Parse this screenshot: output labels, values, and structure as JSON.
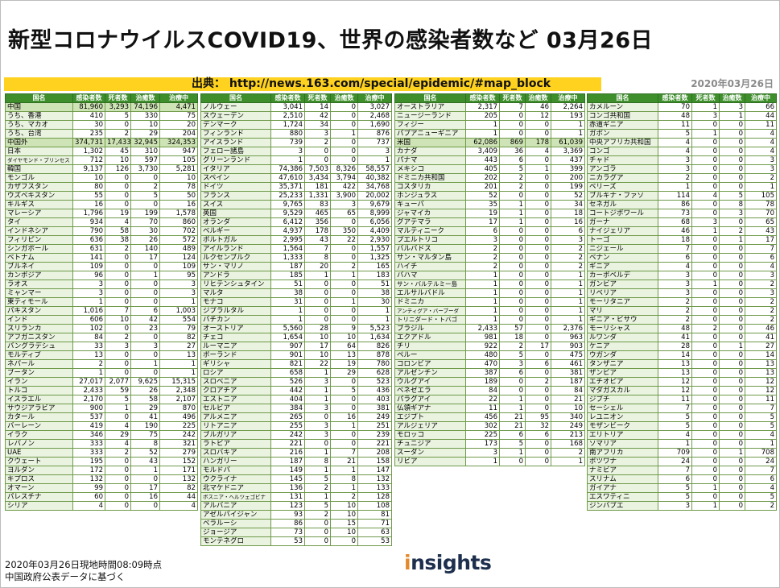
{
  "title": "新型コロナウイルスCOVID19、世界の感染者数など 03月26日",
  "source": "出典： http://news.163.com/special/epidemic/#map_block",
  "date": "2020年03月26日",
  "footer_line1": "2020年03月26日現地時間08:09時点",
  "footer_line2": "中国政府公表データに基づく",
  "logo": {
    "text": "insights",
    "dot": "i"
  },
  "headers": [
    "国名",
    "感染者数",
    "死者数",
    "治癒数",
    "治療中"
  ],
  "tables": [
    {
      "rows": [
        [
          "中国",
          "81,960",
          "3,293",
          "74,196",
          "4,471"
        ],
        [
          "うち、香港",
          "410",
          "5",
          "330",
          "75"
        ],
        [
          "うち、マカオ",
          "30",
          "0",
          "10",
          "20"
        ],
        [
          "うち、台湾",
          "235",
          "2",
          "29",
          "204"
        ],
        [
          "中国外",
          "374,731",
          "17,433",
          "32,945",
          "324,353"
        ],
        [
          "日本",
          "1,302",
          "45",
          "310",
          "947"
        ],
        [
          "ダイヤモンド・プリンセス",
          "712",
          "10",
          "597",
          "105"
        ],
        [
          "韓国",
          "9,137",
          "126",
          "3,730",
          "5,281"
        ],
        [
          "モンゴル",
          "10",
          "0",
          "0",
          "10"
        ],
        [
          "カザフスタン",
          "80",
          "0",
          "2",
          "78"
        ],
        [
          "ウズベキスタン",
          "55",
          "0",
          "5",
          "50"
        ],
        [
          "キルギス",
          "16",
          "0",
          "0",
          "16"
        ],
        [
          "マレーシア",
          "1,796",
          "19",
          "199",
          "1,578"
        ],
        [
          "タイ",
          "934",
          "4",
          "70",
          "860"
        ],
        [
          "インドネシア",
          "790",
          "58",
          "30",
          "702"
        ],
        [
          "フィリピン",
          "636",
          "38",
          "26",
          "572"
        ],
        [
          "シンガポール",
          "631",
          "2",
          "140",
          "489"
        ],
        [
          "ベトナム",
          "141",
          "0",
          "17",
          "124"
        ],
        [
          "ブルネイ",
          "109",
          "0",
          "0",
          "109"
        ],
        [
          "カンボジア",
          "96",
          "0",
          "1",
          "95"
        ],
        [
          "ラオス",
          "3",
          "0",
          "0",
          "3"
        ],
        [
          "ミャンマー",
          "3",
          "0",
          "0",
          "3"
        ],
        [
          "東ティモール",
          "1",
          "0",
          "0",
          "1"
        ],
        [
          "パキスタン",
          "1,016",
          "7",
          "6",
          "1,003"
        ],
        [
          "インド",
          "606",
          "10",
          "42",
          "554"
        ],
        [
          "スリランカ",
          "102",
          "0",
          "23",
          "79"
        ],
        [
          "アフガニスタン",
          "84",
          "2",
          "0",
          "82"
        ],
        [
          "バングラデシュ",
          "33",
          "3",
          "3",
          "27"
        ],
        [
          "モルディブ",
          "13",
          "0",
          "0",
          "13"
        ],
        [
          "ネパール",
          "2",
          "0",
          "1",
          "1"
        ],
        [
          "ブータン",
          "1",
          "0",
          "0",
          "1"
        ],
        [
          "イラン",
          "27,017",
          "2,077",
          "9,625",
          "15,315"
        ],
        [
          "トルコ",
          "2,433",
          "59",
          "26",
          "2,348"
        ],
        [
          "イスラエル",
          "2,170",
          "5",
          "58",
          "2,107"
        ],
        [
          "サウジアラビア",
          "900",
          "1",
          "29",
          "870"
        ],
        [
          "カタール",
          "537",
          "0",
          "41",
          "496"
        ],
        [
          "バーレーン",
          "419",
          "4",
          "190",
          "225"
        ],
        [
          "イラク",
          "346",
          "29",
          "75",
          "242"
        ],
        [
          "レバノン",
          "333",
          "4",
          "8",
          "321"
        ],
        [
          "UAE",
          "333",
          "2",
          "52",
          "279"
        ],
        [
          "クウェート",
          "195",
          "0",
          "43",
          "152"
        ],
        [
          "ヨルダン",
          "172",
          "0",
          "1",
          "171"
        ],
        [
          "キプロス",
          "132",
          "0",
          "0",
          "132"
        ],
        [
          "オマーン",
          "99",
          "0",
          "17",
          "82"
        ],
        [
          "パレスチナ",
          "60",
          "0",
          "16",
          "44"
        ],
        [
          "シリア",
          "4",
          "0",
          "0",
          "4"
        ]
      ]
    },
    {
      "rows": [
        [
          "ノルウェー",
          "3,041",
          "14",
          "0",
          "3,027"
        ],
        [
          "スウェーデン",
          "2,510",
          "42",
          "0",
          "2,468"
        ],
        [
          "デンマーク",
          "1,724",
          "34",
          "0",
          "1,690"
        ],
        [
          "フィンランド",
          "880",
          "3",
          "1",
          "876"
        ],
        [
          "アイスランド",
          "739",
          "2",
          "0",
          "737"
        ],
        [
          "フェロー諸島",
          "3",
          "0",
          "0",
          "3"
        ],
        [
          "グリーンランド",
          "1",
          "0",
          "0",
          "1"
        ],
        [
          "イタリア",
          "74,386",
          "7,503",
          "8,326",
          "58,557"
        ],
        [
          "スペイン",
          "47,610",
          "3,434",
          "3,794",
          "40,382"
        ],
        [
          "ドイツ",
          "35,371",
          "181",
          "422",
          "34,768"
        ],
        [
          "フランス",
          "25,233",
          "1,331",
          "3,900",
          "20,002"
        ],
        [
          "スイス",
          "9,765",
          "83",
          "3",
          "9,679"
        ],
        [
          "英国",
          "9,529",
          "465",
          "65",
          "8,999"
        ],
        [
          "オランダ",
          "6,412",
          "356",
          "0",
          "6,056"
        ],
        [
          "ベルギー",
          "4,937",
          "178",
          "350",
          "4,409"
        ],
        [
          "ポルトガル",
          "2,995",
          "43",
          "22",
          "2,930"
        ],
        [
          "アイルランド",
          "1,564",
          "7",
          "0",
          "1,557"
        ],
        [
          "ルクセンブルク",
          "1,333",
          "8",
          "0",
          "1,325"
        ],
        [
          "サン・マリノ",
          "187",
          "20",
          "2",
          "165"
        ],
        [
          "アンドラ",
          "185",
          "1",
          "1",
          "183"
        ],
        [
          "リヒテンシュタイン",
          "51",
          "0",
          "0",
          "51"
        ],
        [
          "マルタ",
          "38",
          "0",
          "0",
          "38"
        ],
        [
          "モナコ",
          "31",
          "0",
          "1",
          "30"
        ],
        [
          "ジブラルタル",
          "1",
          "0",
          "0",
          "1"
        ],
        [
          "バチカン",
          "1",
          "0",
          "0",
          "1"
        ],
        [
          "オーストリア",
          "5,560",
          "28",
          "9",
          "5,523"
        ],
        [
          "チェコ",
          "1,654",
          "10",
          "10",
          "1,634"
        ],
        [
          "ルーマニア",
          "907",
          "17",
          "64",
          "826"
        ],
        [
          "ポーランド",
          "901",
          "10",
          "13",
          "878"
        ],
        [
          "ギリシャ",
          "821",
          "22",
          "19",
          "780"
        ],
        [
          "ロシア",
          "658",
          "1",
          "29",
          "628"
        ],
        [
          "スロベニア",
          "526",
          "3",
          "0",
          "523"
        ],
        [
          "クロアチア",
          "442",
          "1",
          "5",
          "436"
        ],
        [
          "エストニア",
          "404",
          "1",
          "0",
          "403"
        ],
        [
          "セルビア",
          "384",
          "3",
          "0",
          "381"
        ],
        [
          "アルメニア",
          "265",
          "0",
          "16",
          "249"
        ],
        [
          "リトアニア",
          "255",
          "3",
          "1",
          "251"
        ],
        [
          "ブルガリア",
          "242",
          "3",
          "0",
          "239"
        ],
        [
          "ラトビア",
          "221",
          "0",
          "0",
          "221"
        ],
        [
          "スロバキア",
          "216",
          "1",
          "7",
          "208"
        ],
        [
          "ハンガリー",
          "187",
          "8",
          "21",
          "158"
        ],
        [
          "モルドバ",
          "149",
          "1",
          "1",
          "147"
        ],
        [
          "ウクライナ",
          "145",
          "5",
          "8",
          "132"
        ],
        [
          "北マケドニア",
          "136",
          "2",
          "1",
          "133"
        ],
        [
          "ボスニア・ヘルツェゴビナ",
          "131",
          "1",
          "2",
          "128"
        ],
        [
          "アルバニア",
          "123",
          "5",
          "10",
          "108"
        ],
        [
          "アゼルバイジャン",
          "93",
          "2",
          "10",
          "81"
        ],
        [
          "ベラルーシ",
          "86",
          "0",
          "15",
          "71"
        ],
        [
          "ジョージア",
          "73",
          "0",
          "10",
          "63"
        ],
        [
          "モンテネグロ",
          "53",
          "0",
          "0",
          "53"
        ]
      ]
    },
    {
      "rows": [
        [
          "オーストラリア",
          "2,317",
          "7",
          "46",
          "2,264"
        ],
        [
          "ニュージーランド",
          "205",
          "0",
          "12",
          "193"
        ],
        [
          "フィジー",
          "1",
          "0",
          "0",
          "1"
        ],
        [
          "パプアニューギニア",
          "1",
          "0",
          "0",
          "1"
        ],
        [
          "米国",
          "62,086",
          "869",
          "178",
          "61,039"
        ],
        [
          "カナダ",
          "3,409",
          "36",
          "4",
          "3,369"
        ],
        [
          "パナマ",
          "443",
          "6",
          "0",
          "437"
        ],
        [
          "メキシコ",
          "405",
          "5",
          "1",
          "399"
        ],
        [
          "ドミニカ共和国",
          "202",
          "2",
          "0",
          "200"
        ],
        [
          "コスタリカ",
          "201",
          "2",
          "0",
          "199"
        ],
        [
          "ホンジュラス",
          "52",
          "0",
          "0",
          "52"
        ],
        [
          "キューバ",
          "35",
          "1",
          "0",
          "34"
        ],
        [
          "ジャマイカ",
          "19",
          "1",
          "0",
          "18"
        ],
        [
          "グアテマラ",
          "17",
          "1",
          "0",
          "16"
        ],
        [
          "マルティニーク",
          "6",
          "0",
          "0",
          "6"
        ],
        [
          "プエルトリコ",
          "3",
          "0",
          "0",
          "3"
        ],
        [
          "バルバドス",
          "2",
          "0",
          "0",
          "2"
        ],
        [
          "サン・マルタン島",
          "2",
          "0",
          "0",
          "2"
        ],
        [
          "ハイチ",
          "2",
          "0",
          "0",
          "2"
        ],
        [
          "バハマ",
          "1",
          "0",
          "0",
          "1"
        ],
        [
          "サン・バルテルミー島",
          "1",
          "0",
          "0",
          "1"
        ],
        [
          "エルサルバドル",
          "1",
          "0",
          "0",
          "1"
        ],
        [
          "ドミニカ",
          "1",
          "0",
          "0",
          "1"
        ],
        [
          "アンティグア・バーブーダ",
          "1",
          "0",
          "0",
          "1"
        ],
        [
          "トリニダード・トバゴ",
          "1",
          "0",
          "0",
          "1"
        ],
        [
          "ブラジル",
          "2,433",
          "57",
          "0",
          "2,376"
        ],
        [
          "エクアドル",
          "981",
          "18",
          "0",
          "963"
        ],
        [
          "チリ",
          "922",
          "2",
          "17",
          "903"
        ],
        [
          "ペルー",
          "480",
          "5",
          "0",
          "475"
        ],
        [
          "コロンビア",
          "470",
          "3",
          "6",
          "461"
        ],
        [
          "アルゼンチン",
          "387",
          "6",
          "0",
          "381"
        ],
        [
          "ウルグアイ",
          "189",
          "0",
          "2",
          "187"
        ],
        [
          "ベネゼエラ",
          "84",
          "0",
          "0",
          "84"
        ],
        [
          "パラグアイ",
          "22",
          "1",
          "0",
          "21"
        ],
        [
          "仏領ギアナ",
          "11",
          "1",
          "0",
          "10"
        ],
        [
          "エジプト",
          "456",
          "21",
          "95",
          "340"
        ],
        [
          "アルジェリア",
          "302",
          "21",
          "32",
          "249"
        ],
        [
          "モロッコ",
          "225",
          "6",
          "6",
          "213"
        ],
        [
          "チュニジア",
          "173",
          "5",
          "0",
          "168"
        ],
        [
          "スーダン",
          "3",
          "1",
          "0",
          "2"
        ],
        [
          "リビア",
          "1",
          "0",
          "0",
          "1"
        ]
      ]
    },
    {
      "rows": [
        [
          "カメルーン",
          "70",
          "1",
          "3",
          "66"
        ],
        [
          "コンゴ共和国",
          "48",
          "3",
          "1",
          "44"
        ],
        [
          "赤道ギニア",
          "11",
          "0",
          "0",
          "11"
        ],
        [
          "ガボン",
          "5",
          "1",
          "0",
          "4"
        ],
        [
          "中央アフリカ共和国",
          "4",
          "0",
          "0",
          "4"
        ],
        [
          "コンゴ",
          "4",
          "0",
          "0",
          "4"
        ],
        [
          "チャド",
          "3",
          "0",
          "0",
          "3"
        ],
        [
          "アンゴラ",
          "3",
          "0",
          "0",
          "3"
        ],
        [
          "ニカラグア",
          "2",
          "0",
          "0",
          "2"
        ],
        [
          "ベリーズ",
          "1",
          "0",
          "0",
          "1"
        ],
        [
          "ブルキナ・ファソ",
          "114",
          "4",
          "5",
          "105"
        ],
        [
          "セネガル",
          "86",
          "0",
          "8",
          "78"
        ],
        [
          "コートジボワール",
          "73",
          "0",
          "3",
          "70"
        ],
        [
          "ガーナ",
          "68",
          "3",
          "0",
          "65"
        ],
        [
          "ナイジェリア",
          "46",
          "1",
          "2",
          "43"
        ],
        [
          "トーゴ",
          "18",
          "0",
          "1",
          "17"
        ],
        [
          "ニジェール",
          "7",
          "0",
          "0",
          "7"
        ],
        [
          "ベナン",
          "6",
          "0",
          "0",
          "6"
        ],
        [
          "ギニア",
          "4",
          "0",
          "0",
          "4"
        ],
        [
          "カーボベルデ",
          "3",
          "0",
          "0",
          "3"
        ],
        [
          "ガンビア",
          "3",
          "1",
          "0",
          "2"
        ],
        [
          "リベリア",
          "3",
          "0",
          "0",
          "3"
        ],
        [
          "モーリタニア",
          "2",
          "0",
          "0",
          "2"
        ],
        [
          "マリ",
          "2",
          "0",
          "0",
          "2"
        ],
        [
          "ギニア・ビサウ",
          "2",
          "0",
          "0",
          "2"
        ],
        [
          "モーリシャス",
          "48",
          "2",
          "0",
          "46"
        ],
        [
          "ルワンダ",
          "41",
          "0",
          "0",
          "41"
        ],
        [
          "ケニア",
          "28",
          "0",
          "1",
          "27"
        ],
        [
          "ウガンダ",
          "14",
          "0",
          "0",
          "14"
        ],
        [
          "タンザニア",
          "13",
          "0",
          "0",
          "13"
        ],
        [
          "ザンビア",
          "13",
          "0",
          "0",
          "13"
        ],
        [
          "エチオピア",
          "12",
          "0",
          "0",
          "12"
        ],
        [
          "マダガスカル",
          "12",
          "0",
          "0",
          "12"
        ],
        [
          "ジブチ",
          "11",
          "0",
          "0",
          "11"
        ],
        [
          "セーシェル",
          "7",
          "0",
          "0",
          "7"
        ],
        [
          "レユニオン",
          "5",
          "0",
          "0",
          "5"
        ],
        [
          "モザンビーク",
          "5",
          "0",
          "0",
          "5"
        ],
        [
          "エリトリア",
          "4",
          "0",
          "0",
          "4"
        ],
        [
          "ソマリア",
          "1",
          "0",
          "0",
          "1"
        ],
        [
          "南アフリカ",
          "709",
          "0",
          "1",
          "708"
        ],
        [
          "ボツワナ",
          "24",
          "0",
          "0",
          "24"
        ],
        [
          "ナミビア",
          "7",
          "0",
          "0",
          "7"
        ],
        [
          "スリナム",
          "6",
          "0",
          "0",
          "6"
        ],
        [
          "ガイアナ",
          "5",
          "1",
          "0",
          "4"
        ],
        [
          "エスワティニ",
          "5",
          "0",
          "0",
          "5"
        ],
        [
          "ジンバブエ",
          "3",
          "1",
          "0",
          "2"
        ]
      ]
    }
  ]
}
